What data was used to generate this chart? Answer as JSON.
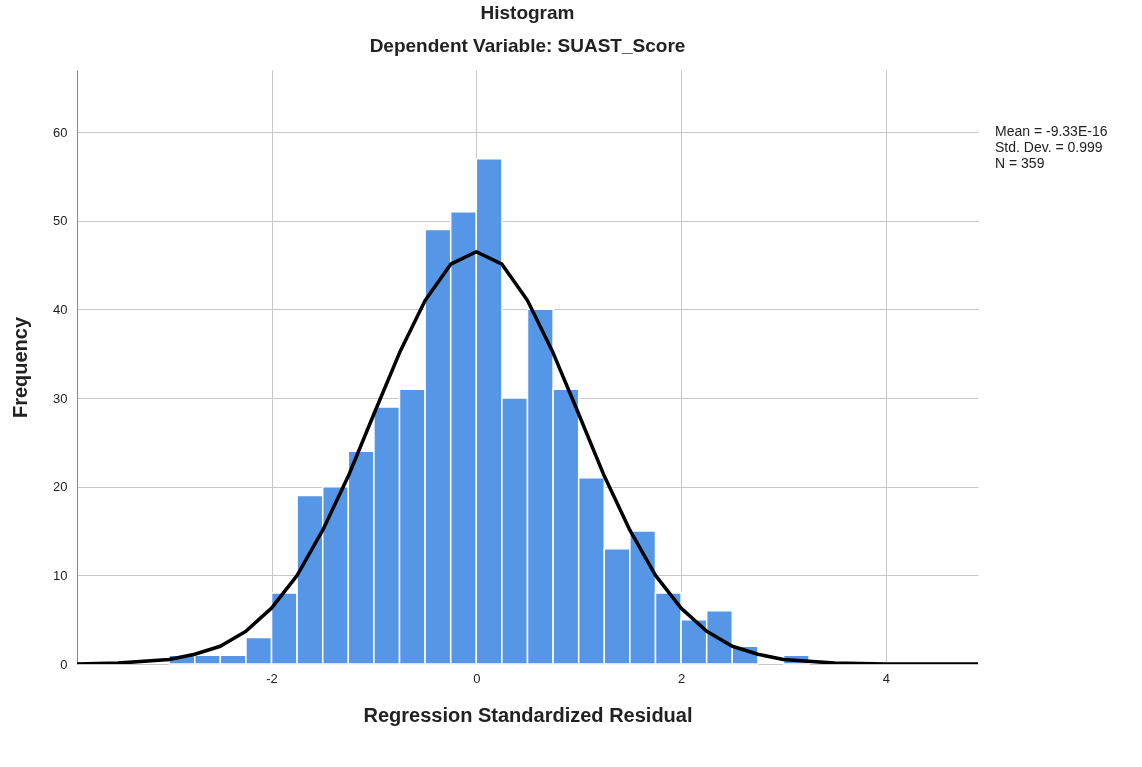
{
  "chart_data": {
    "type": "histogram",
    "title": "Histogram",
    "subtitle": "Dependent Variable: SUAST_Score",
    "xlabel": "Regression Standardized Residual",
    "ylabel": "Frequency",
    "annotations": [
      "Mean = -9.33E-16",
      "Std. Dev. = 0.999",
      "N = 359"
    ],
    "bins": [
      -3,
      -2.75,
      -2.5,
      -2.25,
      -2,
      -1.75,
      -1.5,
      -1.25,
      -1,
      -0.75,
      -0.5,
      -0.25,
      0,
      0.25,
      0.5,
      0.75,
      1,
      1.25,
      1.5,
      1.75,
      2,
      2.25,
      2.5,
      2.75,
      3,
      3.25
    ],
    "series": [
      {
        "color": "#5596e6",
        "values": [
          1,
          1,
          1,
          3,
          8,
          19,
          20,
          24,
          29,
          31,
          49,
          51,
          57,
          30,
          40,
          31,
          21,
          13,
          15,
          8,
          5,
          6,
          2,
          0,
          1
        ]
      },
      {
        "type": "line",
        "color": "#000000",
        "x": [
          -3.9,
          -3.5,
          -3,
          -2.75,
          -2.5,
          -2.25,
          -2,
          -1.75,
          -1.5,
          -1.25,
          -1,
          -0.75,
          -0.5,
          -0.25,
          0,
          0.25,
          0.5,
          0.75,
          1,
          1.25,
          1.5,
          1.75,
          2,
          2.25,
          2.5,
          2.75,
          3,
          3.5,
          4,
          4.9
        ],
        "values": [
          0,
          0.1,
          0.5,
          1.1,
          2,
          3.7,
          6.3,
          10,
          15.1,
          21.2,
          28.2,
          35.1,
          41,
          45.1,
          46.5,
          45.1,
          41,
          35.1,
          28.2,
          21.2,
          15.1,
          10,
          6.3,
          3.7,
          2,
          1.1,
          0.5,
          0.1,
          0,
          0
        ]
      }
    ],
    "xlim": [
      -3.9,
      4.9
    ],
    "xticks": [
      -2,
      0,
      2,
      4
    ],
    "ylim": [
      0,
      67
    ],
    "yticks": [
      0,
      10,
      20,
      30,
      40,
      50,
      60
    ],
    "grid": true,
    "line_style": "solid",
    "marker": "none"
  }
}
